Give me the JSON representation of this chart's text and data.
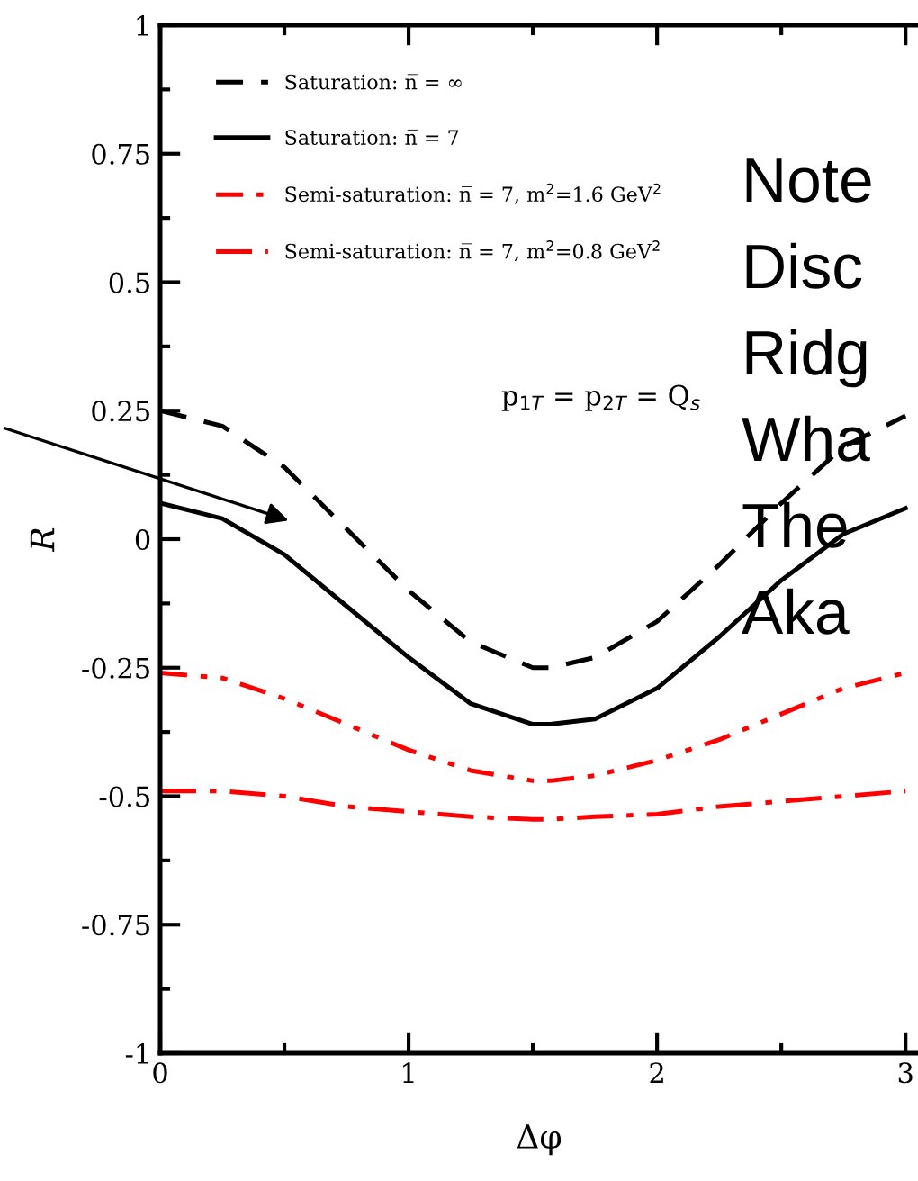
{
  "chart_data": {
    "type": "line",
    "xlabel": "Δφ",
    "ylabel": "R",
    "x": [
      0,
      0.25,
      0.5,
      0.75,
      1,
      1.25,
      1.5,
      1.57,
      1.75,
      2,
      2.25,
      2.5,
      2.75,
      3
    ],
    "series": [
      {
        "name": "Saturation: n̅ = ∞",
        "color": "#000000",
        "line_style": "dashed",
        "values": [
          0.25,
          0.22,
          0.14,
          0.02,
          -0.1,
          -0.2,
          -0.25,
          -0.25,
          -0.23,
          -0.16,
          -0.05,
          0.07,
          0.18,
          0.24
        ]
      },
      {
        "name": "Saturation: n̅ = 7",
        "color": "#000000",
        "line_style": "solid",
        "values": [
          0.07,
          0.04,
          -0.03,
          -0.13,
          -0.23,
          -0.32,
          -0.36,
          -0.36,
          -0.35,
          -0.29,
          -0.19,
          -0.08,
          0.01,
          0.06
        ]
      },
      {
        "name": "Semi-saturation: n̅ = 7, m$^{2}$=1.6 GeV$^{2}$",
        "color": "#ff0000",
        "line_style": "dashdotdot",
        "values": [
          -0.26,
          -0.27,
          -0.31,
          -0.36,
          -0.41,
          -0.45,
          -0.47,
          -0.47,
          -0.46,
          -0.43,
          -0.39,
          -0.34,
          -0.29,
          -0.26
        ]
      },
      {
        "name": "Semi-saturation: n̅ = 7, m$^{2}$=0.8 GeV$^{2}$",
        "color": "#ff0000",
        "line_style": "dashdot",
        "values": [
          -0.49,
          -0.49,
          -0.5,
          -0.52,
          -0.53,
          -0.54,
          -0.545,
          -0.545,
          -0.54,
          -0.535,
          -0.52,
          -0.51,
          -0.5,
          -0.49
        ]
      }
    ],
    "xlim": [
      0,
      3.05
    ],
    "xticks": [
      0,
      1,
      2,
      3
    ],
    "ylim": [
      -1,
      1
    ],
    "yticks": [
      -1,
      -0.75,
      -0.5,
      -0.25,
      0,
      0.25,
      0.5,
      0.75,
      1
    ],
    "legend": "top left",
    "grid": false,
    "annotations": [
      "p$_{1T}$ = p$_{2T}$ = Q$_{s}$",
      "Note",
      "Disc",
      "Ridg",
      "Wha",
      "The",
      "Aka"
    ]
  }
}
